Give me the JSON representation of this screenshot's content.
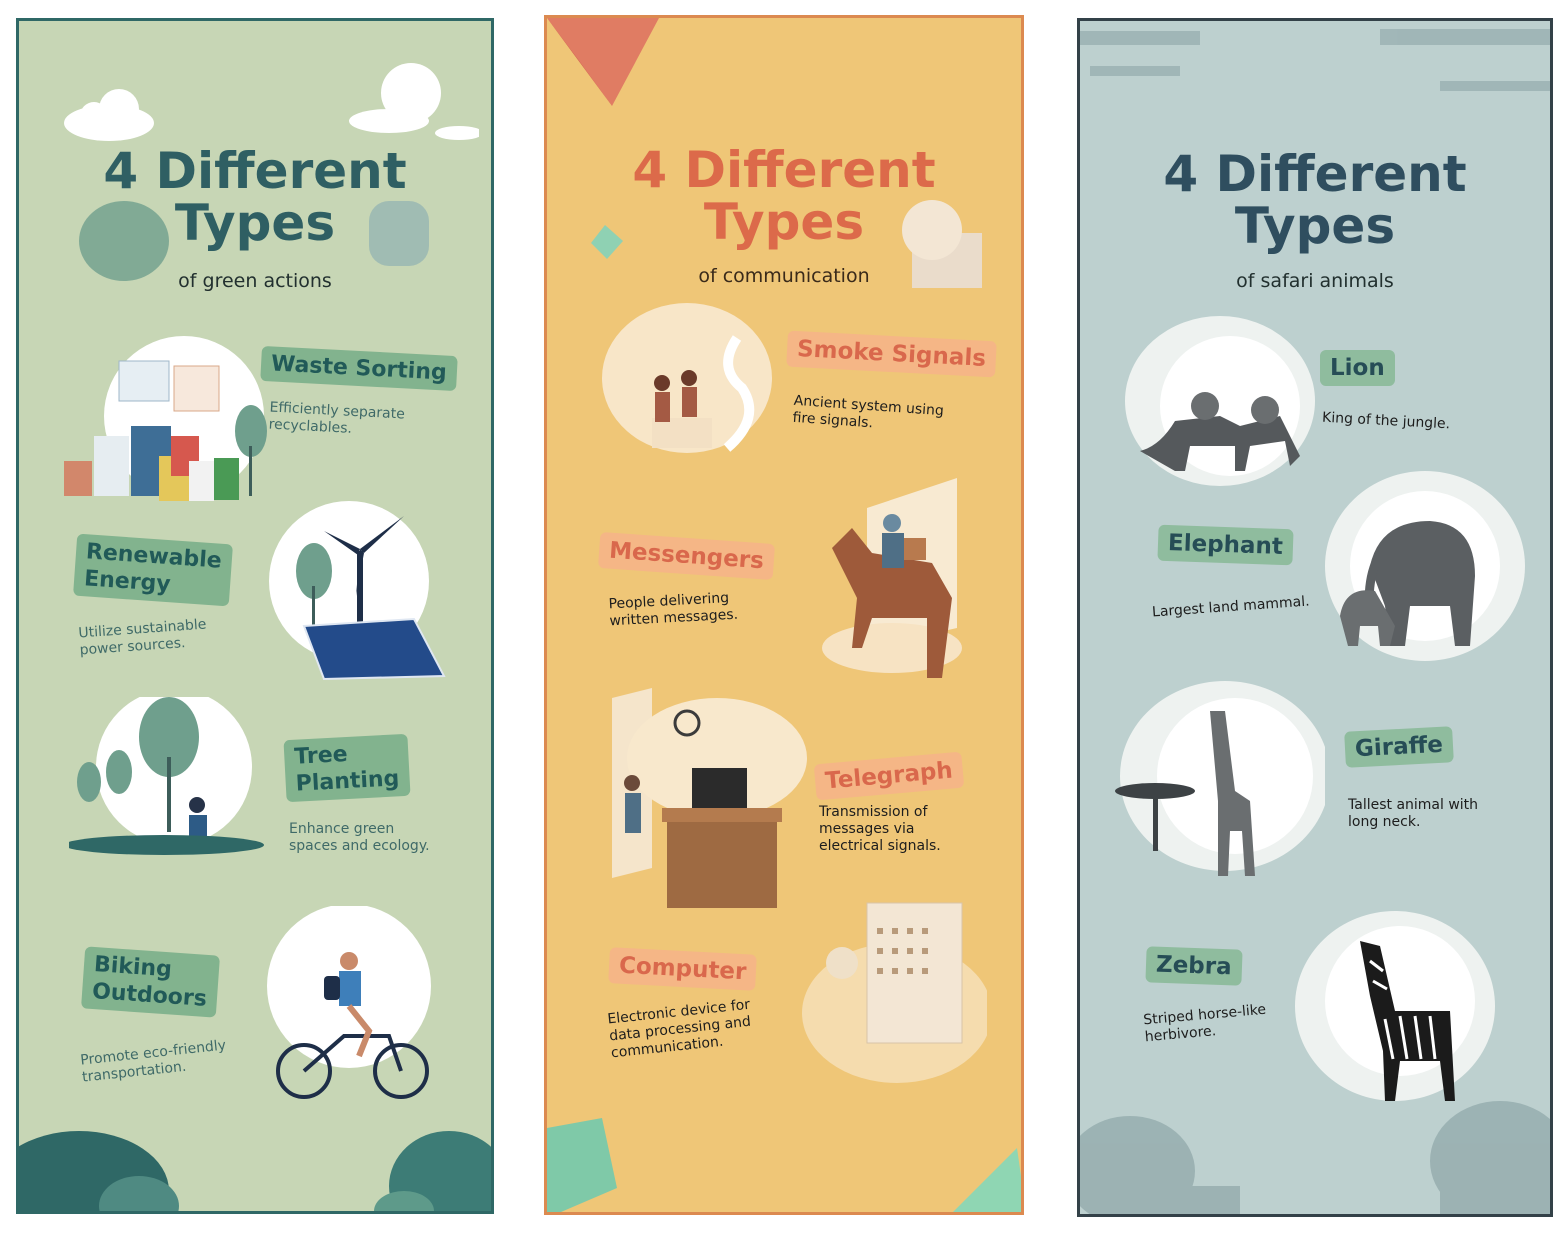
{
  "panels": [
    {
      "title_line1": "4 Different",
      "title_line2": "Types",
      "subtitle": "of green actions",
      "items": [
        {
          "label": "Waste Sorting",
          "desc_line1": "Efficiently separate",
          "desc_line2": "recyclables."
        },
        {
          "label_line1": "Renewable",
          "label_line2": "Energy",
          "desc_line1": "Utilize sustainable",
          "desc_line2": "power sources."
        },
        {
          "label_line1": "Tree",
          "label_line2": "Planting",
          "desc_line1": "Enhance green",
          "desc_line2": "spaces and ecology."
        },
        {
          "label_line1": "Biking",
          "label_line2": "Outdoors",
          "desc_line1": "Promote eco-friendly",
          "desc_line2": "transportation."
        }
      ]
    },
    {
      "title_line1": "4 Different",
      "title_line2": "Types",
      "subtitle": "of communication",
      "items": [
        {
          "label": "Smoke Signals",
          "desc_line1": "Ancient system using",
          "desc_line2": "fire signals."
        },
        {
          "label": "Messengers",
          "desc_line1": "People delivering",
          "desc_line2": "written messages."
        },
        {
          "label": "Telegraph",
          "desc_line1": "Transmission of",
          "desc_line2": "messages via",
          "desc_line3": "electrical signals."
        },
        {
          "label": "Computer",
          "desc_line1": "Electronic device for",
          "desc_line2": "data processing and",
          "desc_line3": "communication."
        }
      ]
    },
    {
      "title_line1": "4 Different",
      "title_line2": "Types",
      "subtitle": "of safari animals",
      "items": [
        {
          "label": "Lion",
          "desc_line1": "King of the jungle."
        },
        {
          "label": "Elephant",
          "desc_line1": "Largest land mammal."
        },
        {
          "label": "Giraffe",
          "desc_line1": "Tallest animal with",
          "desc_line2": "long neck."
        },
        {
          "label": "Zebra",
          "desc_line1": "Striped horse-like",
          "desc_line2": "herbivore."
        }
      ]
    }
  ],
  "colors": {
    "green_panel_bg": "#c7d6b5",
    "green_title": "#2f5f63",
    "orange_panel_bg": "#efc677",
    "orange_title": "#dc6a4a",
    "blue_panel_bg": "#bdd0cf",
    "blue_title": "#2f4e5f"
  }
}
